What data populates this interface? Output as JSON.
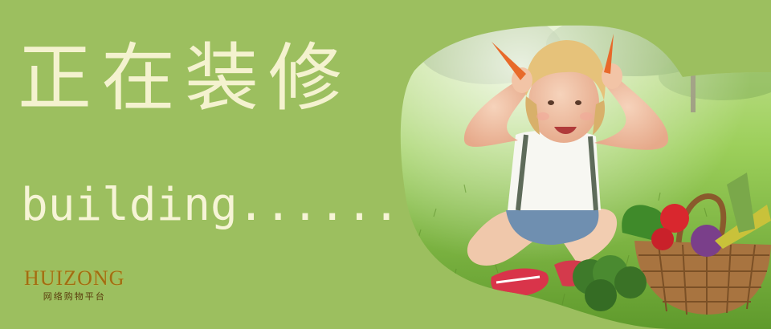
{
  "banner": {
    "headline": "正在装修",
    "subline": "building......",
    "brand": {
      "name": "HUIZONG",
      "tagline": "网络购物平台"
    }
  },
  "colors": {
    "background": "#9cbf5f",
    "headline_text": "#f4f2cf",
    "brand_gold": "#a06d12"
  }
}
